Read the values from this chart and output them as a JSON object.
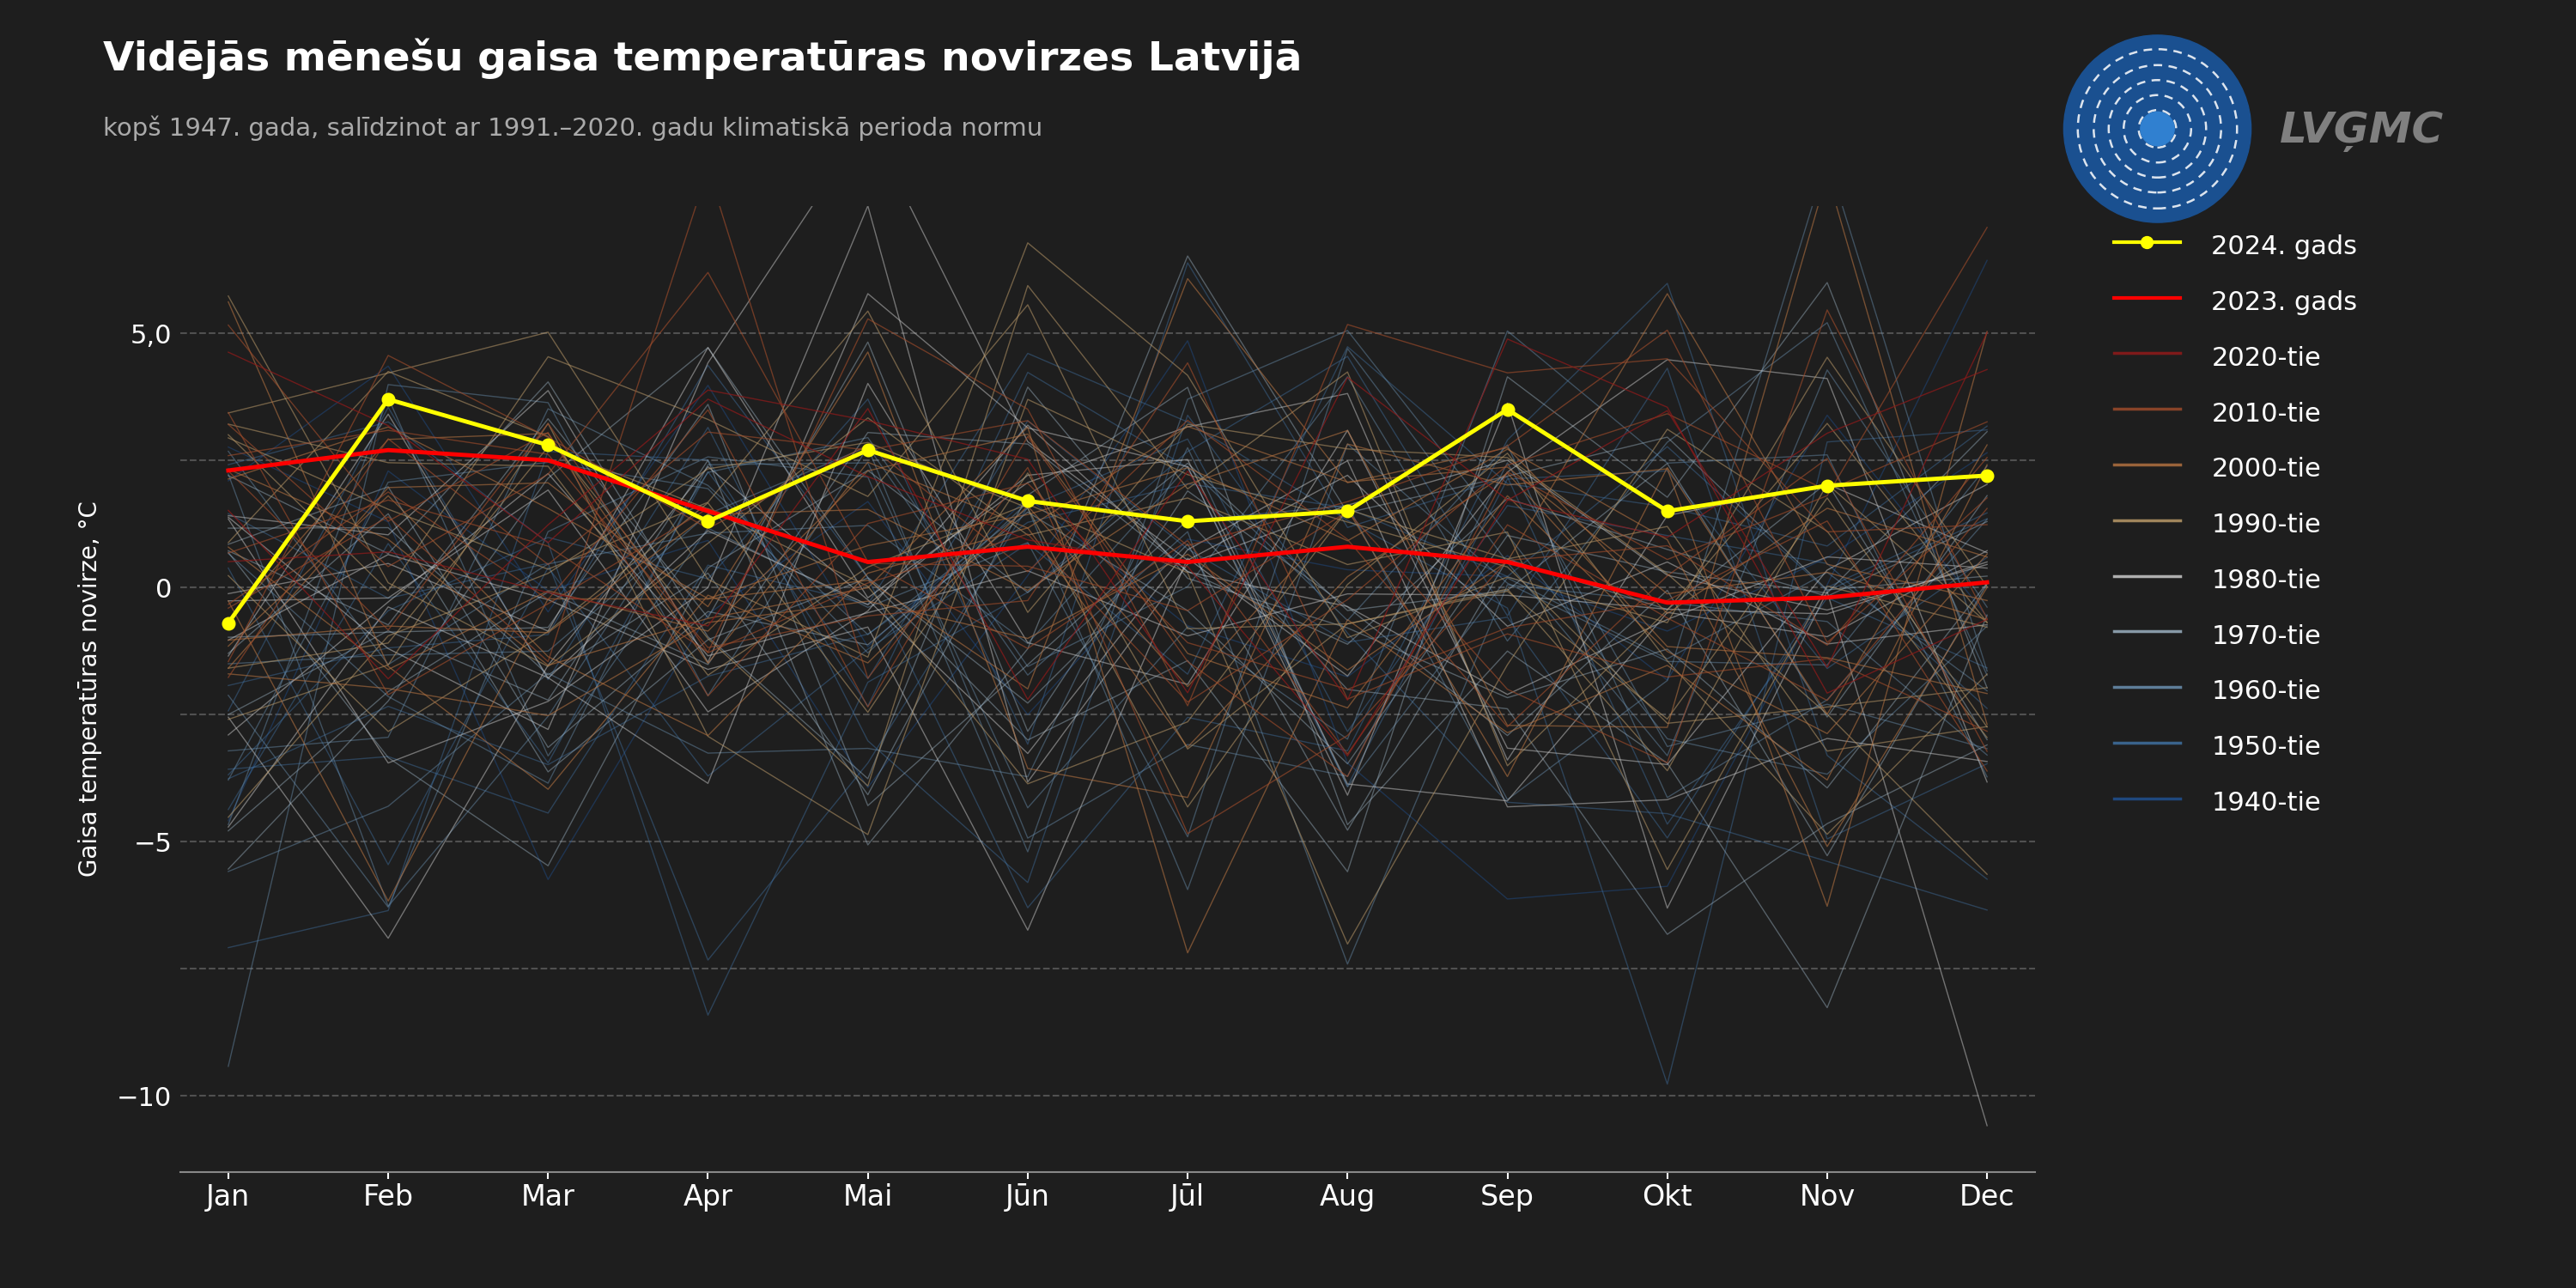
{
  "title": "Vidējās mēnešu gaisa temperatūras novirzes Latvijā",
  "subtitle": "kopš 1947. gada, salīdzinot ar 1991.–2020. gadu klimatiskā perioda normu",
  "ylabel": "Gaisa temperatūras novirze, °C",
  "months": [
    "Jan",
    "Feb",
    "Mar",
    "Apr",
    "Mai",
    "Jūn",
    "Jūl",
    "Aug",
    "Sep",
    "Okt",
    "Nov",
    "Dec"
  ],
  "ylim": [
    -11.5,
    7.5
  ],
  "background_color": "#1e1e1e",
  "grid_color": "#666666",
  "2024_data": [
    -0.7,
    3.7,
    2.8,
    1.3,
    2.7,
    1.7,
    1.3,
    1.5,
    3.5,
    1.5,
    2.0,
    2.2
  ],
  "2023_data": [
    2.3,
    2.7,
    2.5,
    1.5,
    0.5,
    0.8,
    0.5,
    0.8,
    0.5,
    -0.3,
    -0.2,
    0.1
  ],
  "decade_colors": {
    "2020": "#8b1a1a",
    "2010": "#9b4a2a",
    "2000": "#b07040",
    "1990": "#b89868",
    "1980": "#c8c8c8",
    "1970": "#9ab0c0",
    "1960": "#6a90b0",
    "1950": "#4070a0",
    "1940": "#205090"
  },
  "decade_alphas": {
    "2020": 0.75,
    "2010": 0.65,
    "2000": 0.6,
    "1990": 0.55,
    "1980": 0.5,
    "1970": 0.45,
    "1960": 0.45,
    "1950": 0.45,
    "1940": 0.45
  }
}
